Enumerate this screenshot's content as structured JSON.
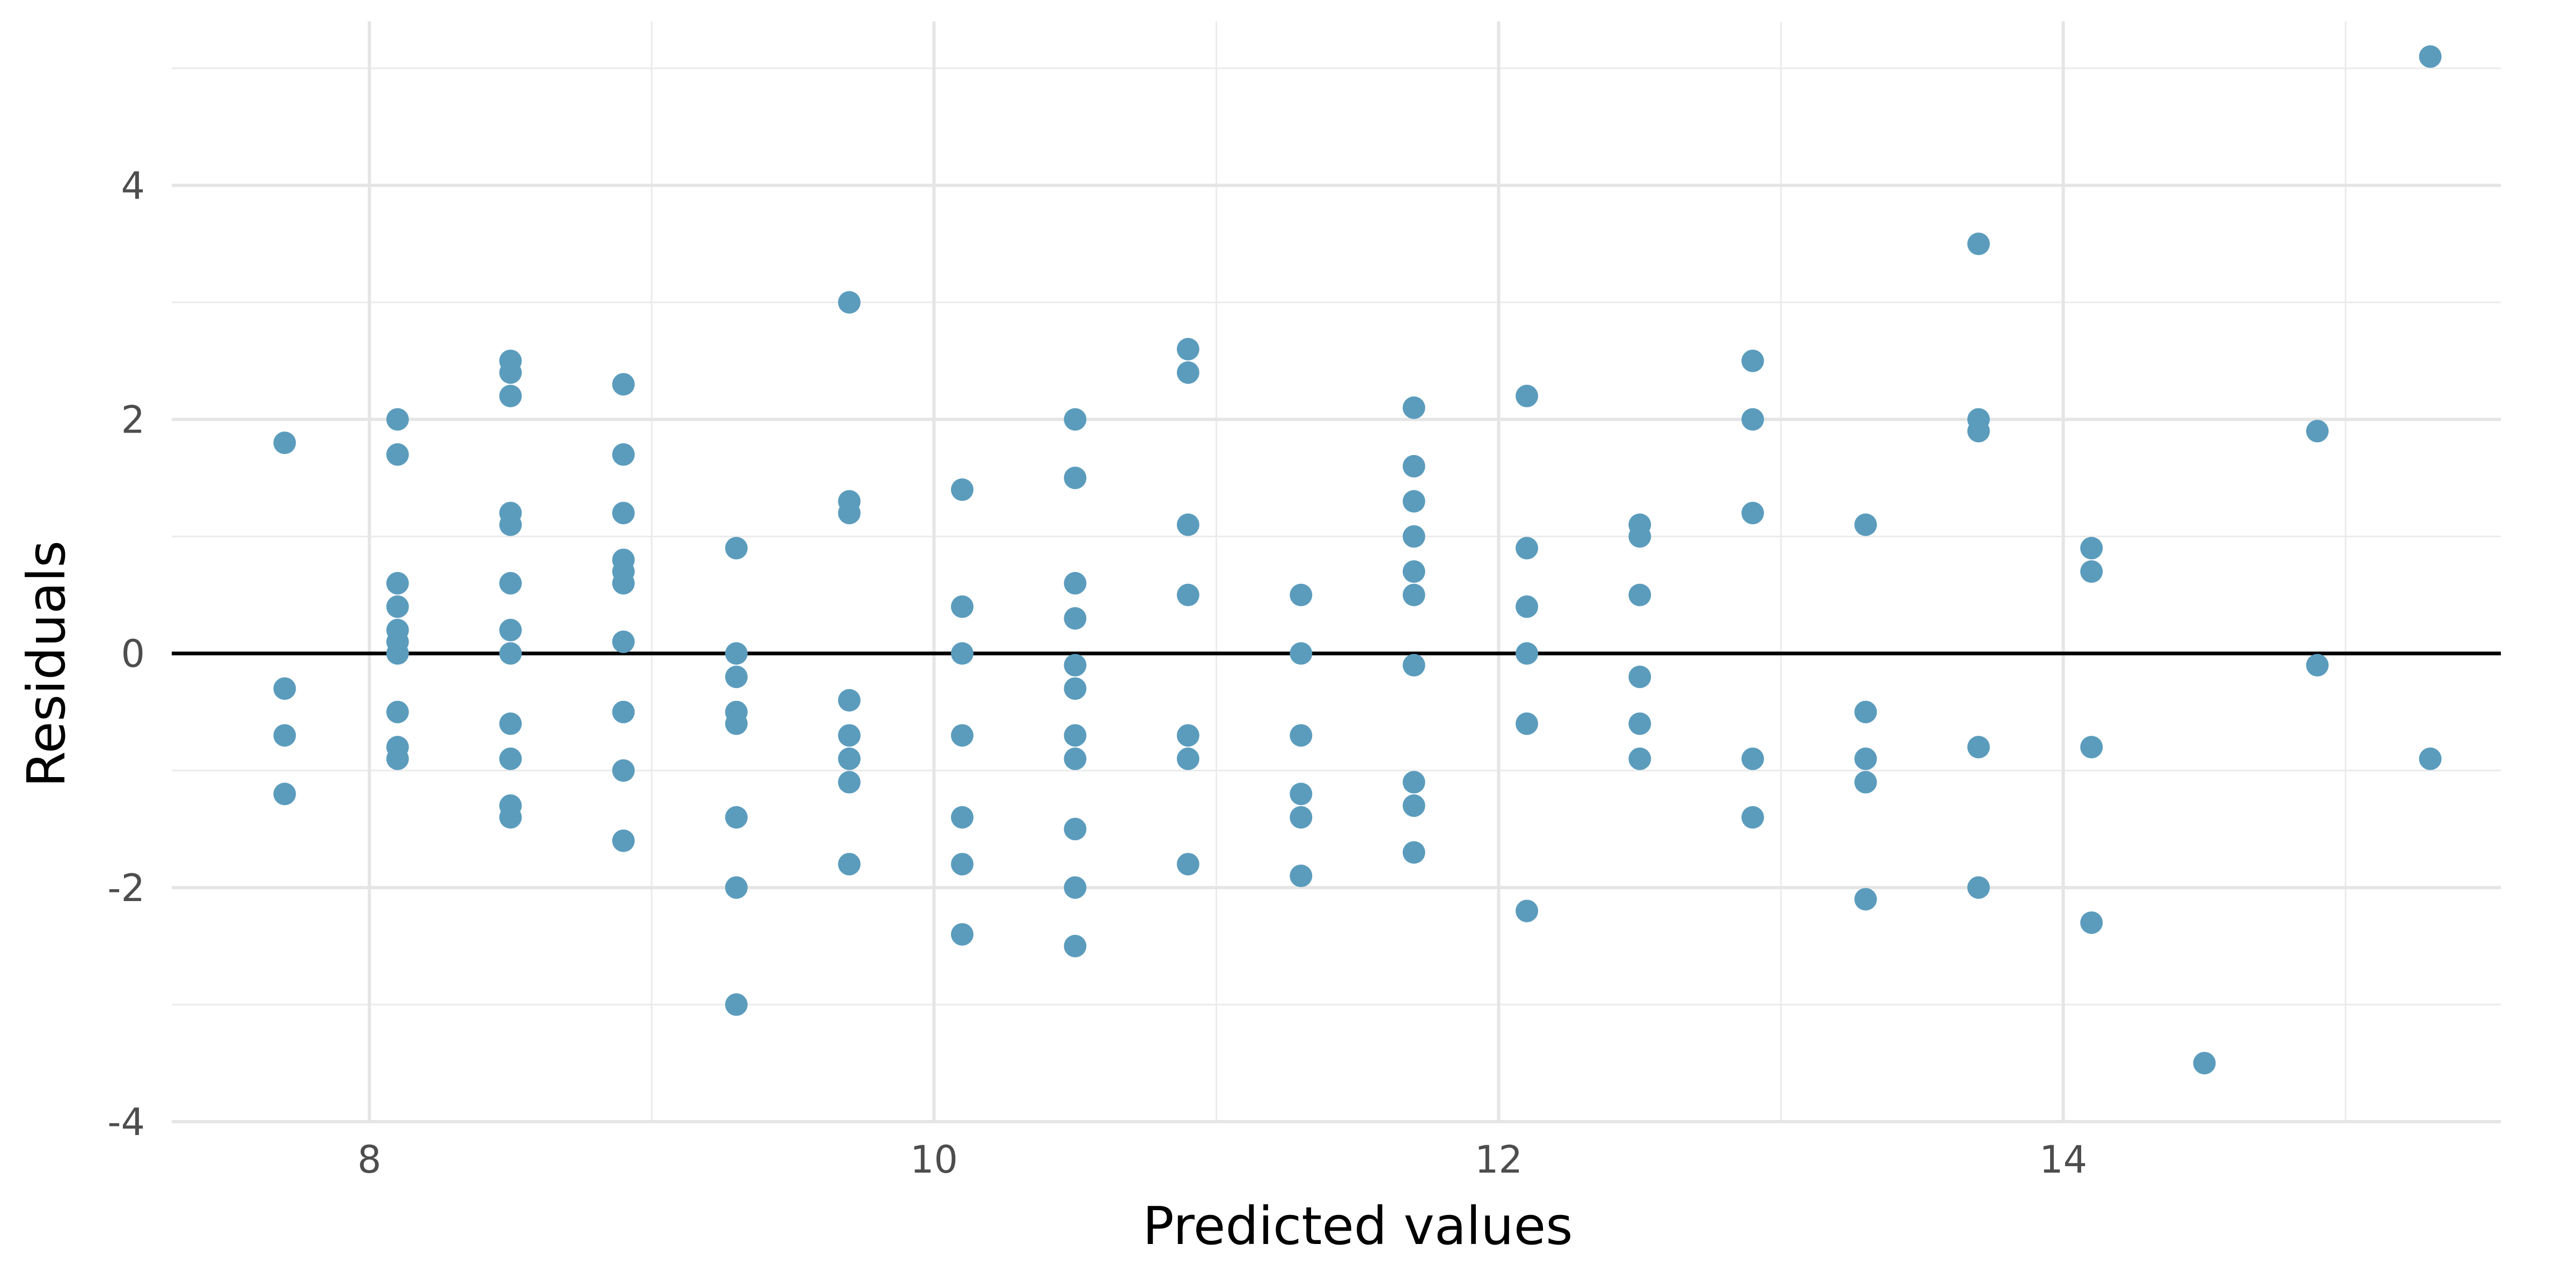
{
  "chart_data": {
    "type": "scatter",
    "title": "",
    "xlabel": "Predicted values",
    "ylabel": "Residuals",
    "xlim": [
      7.3,
      15.55
    ],
    "ylim": [
      -4.0,
      5.4
    ],
    "x_ticks": [
      8,
      10,
      12,
      14
    ],
    "x_tick_labels": [
      "8",
      "10",
      "12",
      "14"
    ],
    "y_ticks": [
      -4,
      -2,
      0,
      2,
      4
    ],
    "y_tick_labels": [
      "-4",
      "-2",
      "0",
      "2",
      "4"
    ],
    "x_minor_ticks": [
      9,
      11,
      13,
      15
    ],
    "y_minor_ticks": [
      -3,
      -1,
      1,
      3,
      5
    ],
    "grid": true,
    "reference_line": {
      "y": 0,
      "color": "#000000"
    },
    "point_color": "#5b9cbd",
    "series": [
      {
        "points": [
          [
            7.7,
            1.8
          ],
          [
            7.7,
            -0.3
          ],
          [
            7.7,
            -0.7
          ],
          [
            7.7,
            -1.2
          ],
          [
            8.1,
            2.0
          ],
          [
            8.1,
            1.7
          ],
          [
            8.1,
            0.6
          ],
          [
            8.1,
            0.4
          ],
          [
            8.1,
            0.2
          ],
          [
            8.1,
            0.1
          ],
          [
            8.1,
            0.0
          ],
          [
            8.1,
            -0.5
          ],
          [
            8.1,
            -0.8
          ],
          [
            8.1,
            -0.9
          ],
          [
            8.5,
            2.5
          ],
          [
            8.5,
            2.4
          ],
          [
            8.5,
            2.2
          ],
          [
            8.5,
            1.2
          ],
          [
            8.5,
            1.1
          ],
          [
            8.5,
            0.6
          ],
          [
            8.5,
            0.2
          ],
          [
            8.5,
            0.0
          ],
          [
            8.5,
            -0.6
          ],
          [
            8.5,
            -0.9
          ],
          [
            8.5,
            -1.3
          ],
          [
            8.5,
            -1.4
          ],
          [
            8.9,
            2.3
          ],
          [
            8.9,
            1.7
          ],
          [
            8.9,
            1.2
          ],
          [
            8.9,
            0.8
          ],
          [
            8.9,
            0.7
          ],
          [
            8.9,
            0.6
          ],
          [
            8.9,
            0.1
          ],
          [
            8.9,
            -0.5
          ],
          [
            8.9,
            -1.0
          ],
          [
            8.9,
            -1.6
          ],
          [
            9.3,
            0.9
          ],
          [
            9.3,
            0.0
          ],
          [
            9.3,
            -0.2
          ],
          [
            9.3,
            -0.5
          ],
          [
            9.3,
            -0.6
          ],
          [
            9.3,
            -1.4
          ],
          [
            9.3,
            -2.0
          ],
          [
            9.3,
            -3.0
          ],
          [
            9.7,
            3.0
          ],
          [
            9.7,
            1.3
          ],
          [
            9.7,
            1.2
          ],
          [
            9.7,
            -0.4
          ],
          [
            9.7,
            -0.7
          ],
          [
            9.7,
            -0.9
          ],
          [
            9.7,
            -1.1
          ],
          [
            9.7,
            -1.8
          ],
          [
            10.1,
            1.4
          ],
          [
            10.1,
            0.4
          ],
          [
            10.1,
            0.0
          ],
          [
            10.1,
            -0.7
          ],
          [
            10.1,
            -1.4
          ],
          [
            10.1,
            -1.8
          ],
          [
            10.1,
            -2.4
          ],
          [
            10.5,
            2.0
          ],
          [
            10.5,
            1.5
          ],
          [
            10.5,
            0.6
          ],
          [
            10.5,
            0.3
          ],
          [
            10.5,
            -0.1
          ],
          [
            10.5,
            -0.3
          ],
          [
            10.5,
            -0.7
          ],
          [
            10.5,
            -0.9
          ],
          [
            10.5,
            -1.5
          ],
          [
            10.5,
            -2.0
          ],
          [
            10.5,
            -2.5
          ],
          [
            10.9,
            2.6
          ],
          [
            10.9,
            2.4
          ],
          [
            10.9,
            1.1
          ],
          [
            10.9,
            0.5
          ],
          [
            10.9,
            -0.7
          ],
          [
            10.9,
            -0.9
          ],
          [
            10.9,
            -1.8
          ],
          [
            11.3,
            0.5
          ],
          [
            11.3,
            0.0
          ],
          [
            11.3,
            -0.7
          ],
          [
            11.3,
            -1.2
          ],
          [
            11.3,
            -1.4
          ],
          [
            11.3,
            -1.9
          ],
          [
            11.7,
            2.1
          ],
          [
            11.7,
            1.6
          ],
          [
            11.7,
            1.3
          ],
          [
            11.7,
            1.0
          ],
          [
            11.7,
            0.7
          ],
          [
            11.7,
            0.5
          ],
          [
            11.7,
            -0.1
          ],
          [
            11.7,
            -1.1
          ],
          [
            11.7,
            -1.3
          ],
          [
            11.7,
            -1.7
          ],
          [
            12.1,
            2.2
          ],
          [
            12.1,
            0.9
          ],
          [
            12.1,
            0.4
          ],
          [
            12.1,
            0.0
          ],
          [
            12.1,
            -0.6
          ],
          [
            12.1,
            -2.2
          ],
          [
            12.5,
            1.1
          ],
          [
            12.5,
            1.0
          ],
          [
            12.5,
            0.5
          ],
          [
            12.5,
            -0.2
          ],
          [
            12.5,
            -0.6
          ],
          [
            12.5,
            -0.9
          ],
          [
            12.9,
            2.5
          ],
          [
            12.9,
            2.0
          ],
          [
            12.9,
            1.2
          ],
          [
            12.9,
            -0.9
          ],
          [
            12.9,
            -1.4
          ],
          [
            13.3,
            1.1
          ],
          [
            13.3,
            -0.5
          ],
          [
            13.3,
            -0.9
          ],
          [
            13.3,
            -1.1
          ],
          [
            13.3,
            -2.1
          ],
          [
            13.7,
            3.5
          ],
          [
            13.7,
            2.0
          ],
          [
            13.7,
            1.9
          ],
          [
            13.7,
            -0.8
          ],
          [
            13.7,
            -2.0
          ],
          [
            14.1,
            0.9
          ],
          [
            14.1,
            0.7
          ],
          [
            14.1,
            -0.8
          ],
          [
            14.1,
            -2.3
          ],
          [
            14.5,
            -3.5
          ],
          [
            14.9,
            1.9
          ],
          [
            14.9,
            -0.1
          ],
          [
            15.3,
            5.1
          ],
          [
            15.3,
            -0.9
          ]
        ]
      }
    ]
  }
}
